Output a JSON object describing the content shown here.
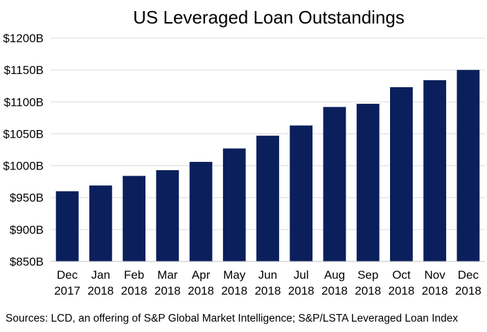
{
  "chart_data": {
    "type": "bar",
    "title": "US Leveraged Loan Outstandings",
    "xlabel": "",
    "ylabel": "",
    "categories": [
      [
        "Dec",
        "2017"
      ],
      [
        "Jan",
        "2018"
      ],
      [
        "Feb",
        "2018"
      ],
      [
        "Mar",
        "2018"
      ],
      [
        "Apr",
        "2018"
      ],
      [
        "May",
        "2018"
      ],
      [
        "Jun",
        "2018"
      ],
      [
        "Jul",
        "2018"
      ],
      [
        "Aug",
        "2018"
      ],
      [
        "Sep",
        "2018"
      ],
      [
        "Oct",
        "2018"
      ],
      [
        "Nov",
        "2018"
      ],
      [
        "Dec",
        "2018"
      ]
    ],
    "values": [
      960,
      969,
      984,
      993,
      1006,
      1027,
      1047,
      1063,
      1092,
      1097,
      1123,
      1134,
      1150
    ],
    "ylim": [
      850,
      1200
    ],
    "yticks": [
      850,
      900,
      950,
      1000,
      1050,
      1100,
      1150,
      1200
    ],
    "ytick_labels": [
      "$850B",
      "$900B",
      "$950B",
      "$1000B",
      "$1050B",
      "$1100B",
      "$1150B",
      "$1200B"
    ],
    "grid": true,
    "legend": "none",
    "bar_color": "#0a1f5c",
    "grid_color": "#d9d9d9"
  },
  "source_note": "Sources: LCD, an offering of S&P Global Market Intelligence; S&P/LSTA Leveraged Loan Index"
}
